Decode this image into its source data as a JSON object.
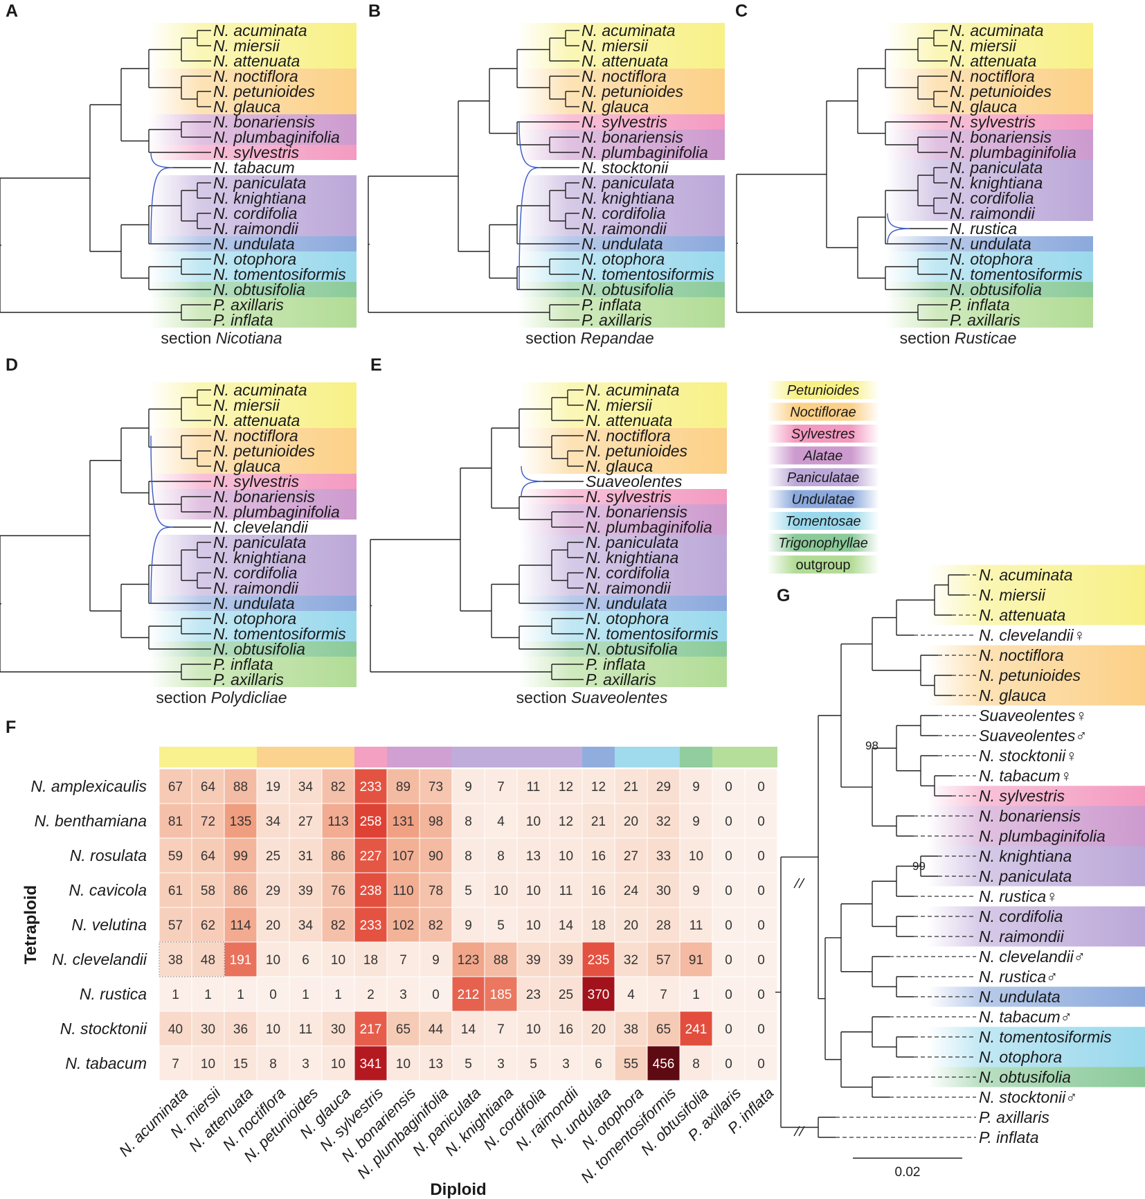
{
  "colors": {
    "Petunioides": "#f7ef7a",
    "Noctiflorae": "#fbcb7a",
    "Sylvestres": "#f28fb9",
    "Alatae": "#c78fc9",
    "Paniculatae": "#b49ed4",
    "Undulatae": "#7e9fd8",
    "Tomentosae": "#8ed4ea",
    "Trigonophyllae": "#7ec48e",
    "outgroup": "#a9d88a",
    "reticulation": "#3a58c4",
    "heat_low": "#fbeae2",
    "heat_high": "#5e0a12"
  },
  "panel_letters": [
    "A",
    "B",
    "C",
    "D",
    "E",
    "F",
    "G"
  ],
  "trees": [
    {
      "letter": "A",
      "caption_prefix": "section ",
      "caption_name": "Nicotiana",
      "hybrid_index": 9,
      "leaves": [
        {
          "name": "N. acuminata",
          "group": "Petunioides"
        },
        {
          "name": "N. miersii",
          "group": "Petunioides"
        },
        {
          "name": "N. attenuata",
          "group": "Petunioides"
        },
        {
          "name": "N. noctiflora",
          "group": "Noctiflorae"
        },
        {
          "name": "N. petunioides",
          "group": "Noctiflorae"
        },
        {
          "name": "N. glauca",
          "group": "Noctiflorae"
        },
        {
          "name": "N. bonariensis",
          "group": "Alatae"
        },
        {
          "name": "N. plumbaginifolia",
          "group": "Alatae"
        },
        {
          "name": "N. sylvestris",
          "group": "Sylvestres"
        },
        {
          "name": "N. tabacum",
          "group": ""
        },
        {
          "name": "N. paniculata",
          "group": "Paniculatae"
        },
        {
          "name": "N. knightiana",
          "group": "Paniculatae"
        },
        {
          "name": "N. cordifolia",
          "group": "Paniculatae"
        },
        {
          "name": "N. raimondii",
          "group": "Paniculatae"
        },
        {
          "name": "N. undulata",
          "group": "Undulatae"
        },
        {
          "name": "N. otophora",
          "group": "Tomentosae"
        },
        {
          "name": "N. tomentosiformis",
          "group": "Tomentosae"
        },
        {
          "name": "N. obtusifolia",
          "group": "Trigonophyllae"
        },
        {
          "name": "P. axillaris",
          "group": "outgroup"
        },
        {
          "name": "P. inflata",
          "group": "outgroup"
        }
      ]
    },
    {
      "letter": "B",
      "caption_prefix": "section ",
      "caption_name": "Repandae",
      "hybrid_index": 9,
      "leaves": [
        {
          "name": "N. acuminata",
          "group": "Petunioides"
        },
        {
          "name": "N. miersii",
          "group": "Petunioides"
        },
        {
          "name": "N. attenuata",
          "group": "Petunioides"
        },
        {
          "name": "N. noctiflora",
          "group": "Noctiflorae"
        },
        {
          "name": "N. petunioides",
          "group": "Noctiflorae"
        },
        {
          "name": "N. glauca",
          "group": "Noctiflorae"
        },
        {
          "name": "N. sylvestris",
          "group": "Sylvestres"
        },
        {
          "name": "N. bonariensis",
          "group": "Alatae"
        },
        {
          "name": "N. plumbaginifolia",
          "group": "Alatae"
        },
        {
          "name": "N. stocktonii",
          "group": ""
        },
        {
          "name": "N. paniculata",
          "group": "Paniculatae"
        },
        {
          "name": "N. knightiana",
          "group": "Paniculatae"
        },
        {
          "name": "N. cordifolia",
          "group": "Paniculatae"
        },
        {
          "name": "N. raimondii",
          "group": "Paniculatae"
        },
        {
          "name": "N. undulata",
          "group": "Undulatae"
        },
        {
          "name": "N. otophora",
          "group": "Tomentosae"
        },
        {
          "name": "N. tomentosiformis",
          "group": "Tomentosae"
        },
        {
          "name": "N. obtusifolia",
          "group": "Trigonophyllae"
        },
        {
          "name": "P. inflata",
          "group": "outgroup"
        },
        {
          "name": "P. axillaris",
          "group": "outgroup"
        }
      ]
    },
    {
      "letter": "C",
      "caption_prefix": "section ",
      "caption_name": "Rusticae",
      "hybrid_index": 13,
      "leaves": [
        {
          "name": "N. acuminata",
          "group": "Petunioides"
        },
        {
          "name": "N. miersii",
          "group": "Petunioides"
        },
        {
          "name": "N. attenuata",
          "group": "Petunioides"
        },
        {
          "name": "N. noctiflora",
          "group": "Noctiflorae"
        },
        {
          "name": "N. petunioides",
          "group": "Noctiflorae"
        },
        {
          "name": "N. glauca",
          "group": "Noctiflorae"
        },
        {
          "name": "N. sylvestris",
          "group": "Sylvestres"
        },
        {
          "name": "N. bonariensis",
          "group": "Alatae"
        },
        {
          "name": "N. plumbaginifolia",
          "group": "Alatae"
        },
        {
          "name": "N. paniculata",
          "group": "Paniculatae"
        },
        {
          "name": "N. knightiana",
          "group": "Paniculatae"
        },
        {
          "name": "N. cordifolia",
          "group": "Paniculatae"
        },
        {
          "name": "N. raimondii",
          "group": "Paniculatae"
        },
        {
          "name": "N. rustica",
          "group": ""
        },
        {
          "name": "N. undulata",
          "group": "Undulatae"
        },
        {
          "name": "N. otophora",
          "group": "Tomentosae"
        },
        {
          "name": "N. tomentosiformis",
          "group": "Tomentosae"
        },
        {
          "name": "N. obtusifolia",
          "group": "Trigonophyllae"
        },
        {
          "name": "P. inflata",
          "group": "outgroup"
        },
        {
          "name": "P. axillaris",
          "group": "outgroup"
        }
      ]
    },
    {
      "letter": "D",
      "caption_prefix": "section ",
      "caption_name": "Polydicliae",
      "hybrid_index": 9,
      "leaves": [
        {
          "name": "N. acuminata",
          "group": "Petunioides"
        },
        {
          "name": "N. miersii",
          "group": "Petunioides"
        },
        {
          "name": "N. attenuata",
          "group": "Petunioides"
        },
        {
          "name": "N. noctiflora",
          "group": "Noctiflorae"
        },
        {
          "name": "N. petunioides",
          "group": "Noctiflorae"
        },
        {
          "name": "N. glauca",
          "group": "Noctiflorae"
        },
        {
          "name": "N. sylvestris",
          "group": "Sylvestres"
        },
        {
          "name": "N. bonariensis",
          "group": "Alatae"
        },
        {
          "name": "N. plumbaginifolia",
          "group": "Alatae"
        },
        {
          "name": "N. clevelandii",
          "group": ""
        },
        {
          "name": "N. paniculata",
          "group": "Paniculatae"
        },
        {
          "name": "N. knightiana",
          "group": "Paniculatae"
        },
        {
          "name": "N. cordifolia",
          "group": "Paniculatae"
        },
        {
          "name": "N. raimondii",
          "group": "Paniculatae"
        },
        {
          "name": "N. undulata",
          "group": "Undulatae"
        },
        {
          "name": "N. otophora",
          "group": "Tomentosae"
        },
        {
          "name": "N. tomentosiformis",
          "group": "Tomentosae"
        },
        {
          "name": "N. obtusifolia",
          "group": "Trigonophyllae"
        },
        {
          "name": "P. inflata",
          "group": "outgroup"
        },
        {
          "name": "P. axillaris",
          "group": "outgroup"
        }
      ]
    },
    {
      "letter": "E",
      "caption_prefix": "section ",
      "caption_name": "Suaveolentes",
      "hybrid_index": 6,
      "leaves": [
        {
          "name": "N. acuminata",
          "group": "Petunioides"
        },
        {
          "name": "N. miersii",
          "group": "Petunioides"
        },
        {
          "name": "N. attenuata",
          "group": "Petunioides"
        },
        {
          "name": "N. noctiflora",
          "group": "Noctiflorae"
        },
        {
          "name": "N. petunioides",
          "group": "Noctiflorae"
        },
        {
          "name": "N. glauca",
          "group": "Noctiflorae"
        },
        {
          "name": "Suaveolentes",
          "group": ""
        },
        {
          "name": "N. sylvestris",
          "group": "Sylvestres"
        },
        {
          "name": "N. bonariensis",
          "group": "Alatae"
        },
        {
          "name": "N. plumbaginifolia",
          "group": "Alatae"
        },
        {
          "name": "N. paniculata",
          "group": "Paniculatae"
        },
        {
          "name": "N. knightiana",
          "group": "Paniculatae"
        },
        {
          "name": "N. cordifolia",
          "group": "Paniculatae"
        },
        {
          "name": "N. raimondii",
          "group": "Paniculatae"
        },
        {
          "name": "N. undulata",
          "group": "Undulatae"
        },
        {
          "name": "N. otophora",
          "group": "Tomentosae"
        },
        {
          "name": "N. tomentosiformis",
          "group": "Tomentosae"
        },
        {
          "name": "N. obtusifolia",
          "group": "Trigonophyllae"
        },
        {
          "name": "P. inflata",
          "group": "outgroup"
        },
        {
          "name": "P. axillaris",
          "group": "outgroup"
        }
      ]
    }
  ],
  "legend": [
    "Petunioides",
    "Noctiflorae",
    "Sylvestres",
    "Alatae",
    "Paniculatae",
    "Undulatae",
    "Tomentosae",
    "Trigonophyllae",
    "outgroup"
  ],
  "heatmap": {
    "ylabel": "Tetraploid",
    "xlabel": "Diploid",
    "columns": [
      "N. acuminata",
      "N. miersii",
      "N. attenuata",
      "N. noctiflora",
      "N. petunioides",
      "N. glauca",
      "N. sylvestris",
      "N. bonariensis",
      "N. plumbaginifolia",
      "N. paniculata",
      "N. knightiana",
      "N. cordifolia",
      "N. raimondii",
      "N. undulata",
      "N. otophora",
      "N. tomentosiformis",
      "N. obtusifolia",
      "P. axillaris",
      "P. inflata"
    ],
    "column_groups": [
      "Petunioides",
      "Petunioides",
      "Petunioides",
      "Noctiflorae",
      "Noctiflorae",
      "Noctiflorae",
      "Sylvestres",
      "Alatae",
      "Alatae",
      "Paniculatae",
      "Paniculatae",
      "Paniculatae",
      "Paniculatae",
      "Undulatae",
      "Tomentosae",
      "Tomentosae",
      "Trigonophyllae",
      "outgroup",
      "outgroup"
    ],
    "rows": [
      "N. amplexicaulis",
      "N. benthamiana",
      "N. rosulata",
      "N. cavicola",
      "N. velutina",
      "N. clevelandii",
      "N. rustica",
      "N. stocktonii",
      "N. tabacum"
    ],
    "values": [
      [
        67,
        64,
        88,
        19,
        34,
        82,
        233,
        89,
        73,
        9,
        7,
        11,
        12,
        12,
        21,
        29,
        9,
        0,
        0
      ],
      [
        81,
        72,
        135,
        34,
        27,
        113,
        258,
        131,
        98,
        8,
        4,
        10,
        12,
        21,
        20,
        32,
        9,
        0,
        0
      ],
      [
        59,
        64,
        99,
        25,
        31,
        86,
        227,
        107,
        90,
        8,
        8,
        13,
        10,
        16,
        27,
        33,
        10,
        0,
        0
      ],
      [
        61,
        58,
        86,
        29,
        39,
        76,
        238,
        110,
        78,
        5,
        10,
        10,
        11,
        16,
        24,
        30,
        9,
        0,
        0
      ],
      [
        57,
        62,
        114,
        20,
        34,
        82,
        233,
        102,
        82,
        9,
        5,
        10,
        14,
        18,
        20,
        28,
        11,
        0,
        0
      ],
      [
        38,
        48,
        191,
        10,
        6,
        10,
        18,
        7,
        9,
        123,
        88,
        39,
        39,
        235,
        32,
        57,
        91,
        0,
        0
      ],
      [
        1,
        1,
        1,
        0,
        1,
        1,
        2,
        3,
        0,
        212,
        185,
        23,
        25,
        370,
        4,
        7,
        1,
        0,
        0
      ],
      [
        40,
        30,
        36,
        10,
        11,
        30,
        217,
        65,
        44,
        14,
        7,
        10,
        16,
        20,
        38,
        65,
        241,
        0,
        0
      ],
      [
        7,
        10,
        15,
        8,
        3,
        10,
        341,
        10,
        13,
        5,
        3,
        5,
        3,
        6,
        55,
        456,
        8,
        0,
        0
      ]
    ]
  },
  "tree_g": {
    "scale_label": "0.02",
    "bootstrap": [
      "98",
      "99"
    ],
    "leaves": [
      {
        "name": "N. acuminata",
        "group": "Petunioides"
      },
      {
        "name": "N. miersii",
        "group": "Petunioides"
      },
      {
        "name": "N. attenuata",
        "group": "Petunioides"
      },
      {
        "name": "N. clevelandii♀",
        "group": ""
      },
      {
        "name": "N. noctiflora",
        "group": "Noctiflorae"
      },
      {
        "name": "N. petunioides",
        "group": "Noctiflorae"
      },
      {
        "name": "N. glauca",
        "group": "Noctiflorae"
      },
      {
        "name": "Suaveolentes♀",
        "group": ""
      },
      {
        "name": "Suaveolentes♂",
        "group": ""
      },
      {
        "name": "N. stocktonii♀",
        "group": ""
      },
      {
        "name": "N. tabacum♀",
        "group": ""
      },
      {
        "name": "N. sylvestris",
        "group": "Sylvestres"
      },
      {
        "name": "N. bonariensis",
        "group": "Alatae"
      },
      {
        "name": "N. plumbaginifolia",
        "group": "Alatae"
      },
      {
        "name": "N. knightiana",
        "group": "Paniculatae"
      },
      {
        "name": "N. paniculata",
        "group": "Paniculatae"
      },
      {
        "name": "N. rustica♀",
        "group": ""
      },
      {
        "name": "N. cordifolia",
        "group": "Paniculatae"
      },
      {
        "name": "N. raimondii",
        "group": "Paniculatae"
      },
      {
        "name": "N. clevelandii♂",
        "group": ""
      },
      {
        "name": "N. rustica♂",
        "group": ""
      },
      {
        "name": "N. undulata",
        "group": "Undulatae"
      },
      {
        "name": "N. tabacum♂",
        "group": ""
      },
      {
        "name": "N. tomentosiformis",
        "group": "Tomentosae"
      },
      {
        "name": "N. otophora",
        "group": "Tomentosae"
      },
      {
        "name": "N. obtusifolia",
        "group": "Trigonophyllae"
      },
      {
        "name": "N. stocktonii♂",
        "group": ""
      },
      {
        "name": "P. axillaris",
        "group": ""
      },
      {
        "name": "P. inflata",
        "group": ""
      }
    ]
  }
}
